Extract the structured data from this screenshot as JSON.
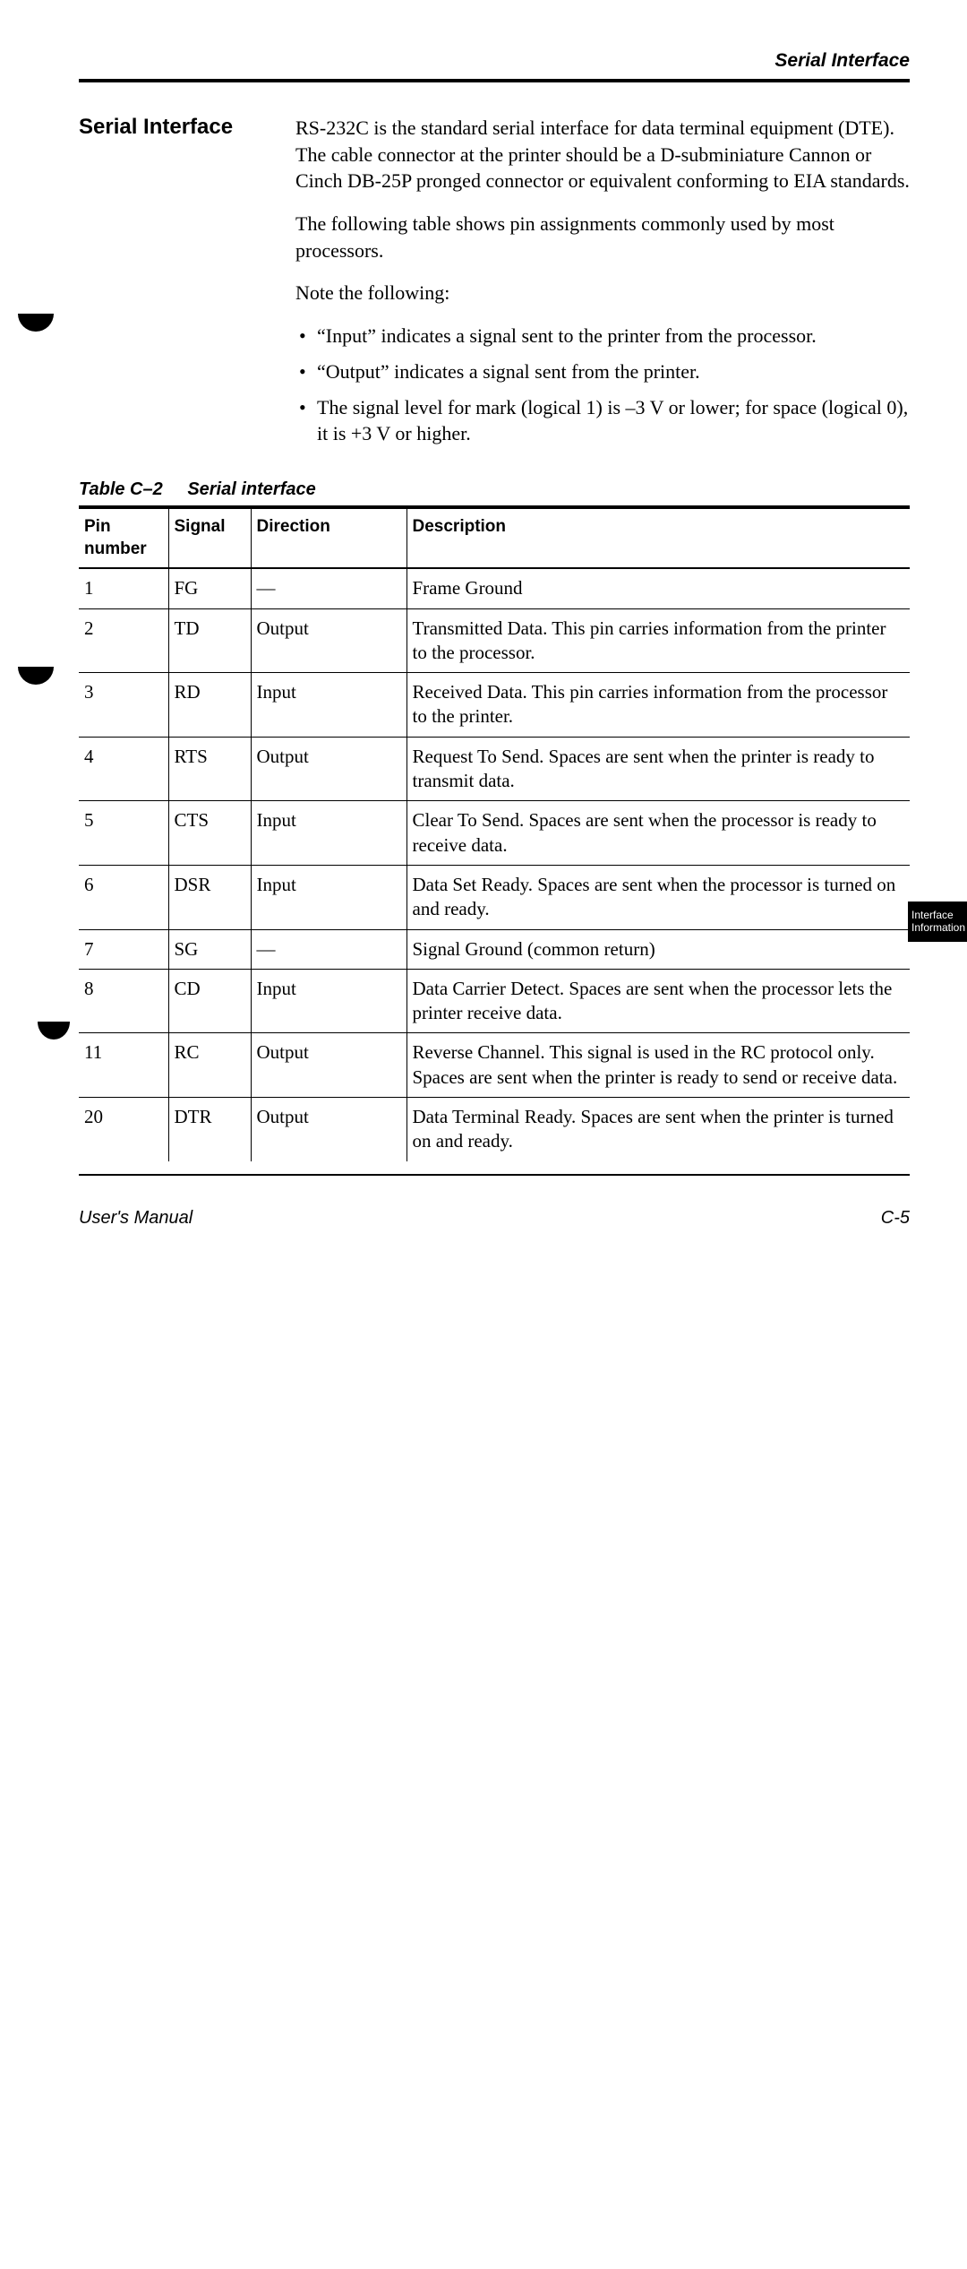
{
  "header": {
    "running_title": "Serial Interface"
  },
  "section": {
    "heading": "Serial Interface",
    "paragraphs": [
      "RS-232C is the standard serial interface for data terminal equipment (DTE). The cable connector at the printer should be a D-subminiature Cannon or Cinch DB-25P pronged connector or equivalent conforming to EIA standards.",
      "The following table shows pin assignments commonly used by most processors.",
      "Note the following:"
    ],
    "bullets": [
      "“Input” indicates a signal sent to the printer from the processor.",
      "“Output” indicates a signal sent from the printer.",
      "The signal level for mark (logical 1) is –3 V or lower; for space (logical 0), it is +3 V or higher."
    ]
  },
  "table": {
    "caption_number": "Table C–2",
    "caption_title": "Serial interface",
    "headers": {
      "pin": "Pin number",
      "signal": "Signal",
      "direction": "Direction",
      "description": "Description"
    },
    "rows": [
      {
        "pin": "1",
        "signal": "FG",
        "direction": "—",
        "description": "Frame Ground"
      },
      {
        "pin": "2",
        "signal": "TD",
        "direction": "Output",
        "description": "Transmitted Data. This pin carries information from the printer to the processor."
      },
      {
        "pin": "3",
        "signal": "RD",
        "direction": "Input",
        "description": "Received Data. This pin carries information from the processor to the printer."
      },
      {
        "pin": "4",
        "signal": "RTS",
        "direction": "Output",
        "description": "Request To Send. Spaces are sent when the printer is ready to transmit data."
      },
      {
        "pin": "5",
        "signal": "CTS",
        "direction": "Input",
        "description": "Clear To Send. Spaces are sent when the processor is ready to receive data."
      },
      {
        "pin": "6",
        "signal": "DSR",
        "direction": "Input",
        "description": "Data Set Ready. Spaces are sent when the processor is turned on and ready."
      },
      {
        "pin": "7",
        "signal": "SG",
        "direction": "—",
        "description": "Signal Ground (common return)"
      },
      {
        "pin": "8",
        "signal": "CD",
        "direction": "Input",
        "description": "Data Carrier Detect. Spaces are sent when the processor lets the printer receive data."
      },
      {
        "pin": "11",
        "signal": "RC",
        "direction": "Output",
        "description": "Reverse Channel. This signal is used in the RC protocol only. Spaces are sent when the printer is ready to send or receive data."
      },
      {
        "pin": "20",
        "signal": "DTR",
        "direction": "Output",
        "description": "Data Terminal Ready. Spaces are sent when the printer is turned on and ready."
      }
    ]
  },
  "footer": {
    "left": "User's Manual",
    "right": "C-5"
  },
  "side_tab": {
    "line1": "Interface",
    "line2": "Information"
  }
}
